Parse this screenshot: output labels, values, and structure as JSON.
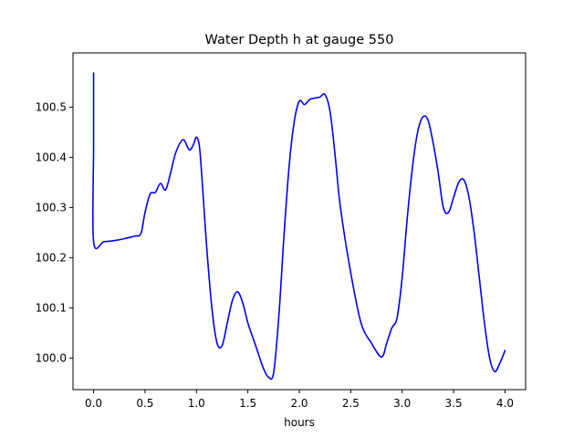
{
  "chart_data": {
    "type": "line",
    "title": "Water Depth h at gauge 550",
    "xlabel": "hours",
    "ylabel": "",
    "xlim": [
      -0.2,
      4.2
    ],
    "ylim": [
      99.937,
      100.608
    ],
    "x_ticks": [
      0.0,
      0.5,
      1.0,
      1.5,
      2.0,
      2.5,
      3.0,
      3.5,
      4.0
    ],
    "x_tick_labels": [
      "0.0",
      "0.5",
      "1.0",
      "1.5",
      "2.0",
      "2.5",
      "3.0",
      "3.5",
      "4.0"
    ],
    "y_ticks": [
      100.0,
      100.1,
      100.2,
      100.3,
      100.4,
      100.5
    ],
    "y_tick_labels": [
      "100.0",
      "100.1",
      "100.2",
      "100.3",
      "100.4",
      "100.5"
    ],
    "grid": false,
    "series": [
      {
        "color": "#0000ff",
        "x": [
          0.0,
          0.0,
          0.0,
          0.1,
          0.2,
          0.3,
          0.4,
          0.46,
          0.5,
          0.55,
          0.6,
          0.65,
          0.7,
          0.75,
          0.8,
          0.87,
          0.93,
          0.97,
          1.0,
          1.03,
          1.06,
          1.1,
          1.15,
          1.2,
          1.25,
          1.3,
          1.35,
          1.4,
          1.45,
          1.5,
          1.55,
          1.6,
          1.65,
          1.7,
          1.75,
          1.8,
          1.85,
          1.9,
          1.95,
          2.0,
          2.05,
          2.1,
          2.15,
          2.2,
          2.25,
          2.3,
          2.35,
          2.4,
          2.5,
          2.6,
          2.7,
          2.8,
          2.85,
          2.9,
          2.95,
          3.0,
          3.05,
          3.1,
          3.15,
          3.2,
          3.25,
          3.3,
          3.35,
          3.4,
          3.45,
          3.5,
          3.55,
          3.6,
          3.65,
          3.7,
          3.75,
          3.8,
          3.85,
          3.9,
          3.95,
          4.0
        ],
        "y": [
          100.568,
          100.42,
          100.232,
          100.232,
          100.234,
          100.238,
          100.243,
          100.248,
          100.29,
          100.327,
          100.33,
          100.348,
          100.335,
          100.37,
          100.41,
          100.435,
          100.415,
          100.425,
          100.44,
          100.42,
          100.34,
          100.22,
          100.1,
          100.03,
          100.025,
          100.07,
          100.115,
          100.132,
          100.11,
          100.07,
          100.04,
          100.01,
          99.98,
          99.962,
          99.97,
          100.08,
          100.24,
          100.38,
          100.47,
          100.512,
          100.505,
          100.515,
          100.518,
          100.52,
          100.525,
          100.49,
          100.4,
          100.3,
          100.17,
          100.07,
          100.03,
          100.002,
          100.03,
          100.06,
          100.08,
          100.16,
          100.28,
          100.38,
          100.45,
          100.48,
          100.475,
          100.43,
          100.37,
          100.3,
          100.29,
          100.32,
          100.35,
          100.355,
          100.32,
          100.25,
          100.16,
          100.07,
          100.0,
          99.973,
          99.99,
          100.015
        ]
      }
    ]
  }
}
